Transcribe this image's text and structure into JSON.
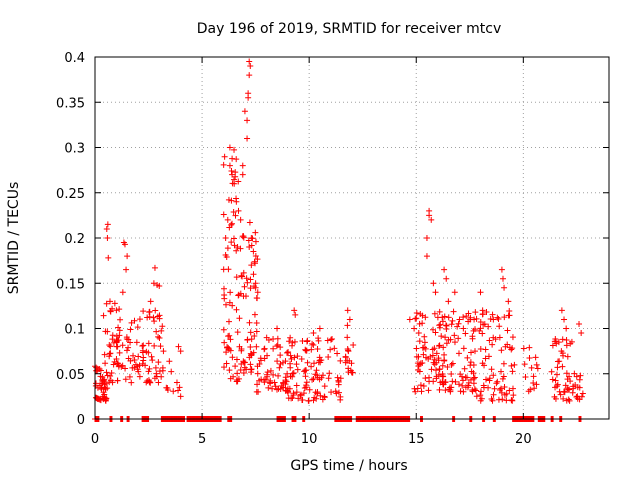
{
  "chart_data": {
    "type": "scatter",
    "title": "Day 196 of 2019, SRMTID for receiver mtcv",
    "xlabel": "GPS time / hours",
    "ylabel": "SRMTID / TECUs",
    "xlim": [
      0,
      24
    ],
    "ylim": [
      0,
      0.4
    ],
    "grid": true,
    "marker": "+",
    "series_color": "#ff0000",
    "grid_color": "#a0a0a0",
    "x_tick_values": [
      0,
      5,
      10,
      15,
      20
    ],
    "x_tick_labels": [
      "0",
      "5",
      "10",
      "15",
      "20"
    ],
    "y_tick_values": [
      0,
      0.05,
      0.1,
      0.15,
      0.2,
      0.25,
      0.3,
      0.35,
      0.4
    ],
    "y_tick_labels": [
      "0",
      "0.05",
      "0.1",
      "0.15",
      "0.2",
      "0.25",
      "0.3",
      "0.35",
      "0.4"
    ],
    "series": [
      {
        "name": "SRMTID",
        "clusters": [
          {
            "x_range": [
              0.0,
              0.6
            ],
            "y_range": [
              0.02,
              0.06
            ],
            "count": 45
          },
          {
            "x_range": [
              0.4,
              1.2
            ],
            "y_range": [
              0.04,
              0.13
            ],
            "count": 40
          },
          {
            "x_range": [
              1.0,
              2.0
            ],
            "y_range": [
              0.04,
              0.11
            ],
            "count": 35
          },
          {
            "x_range": [
              2.0,
              3.2
            ],
            "y_range": [
              0.04,
              0.12
            ],
            "count": 55
          },
          {
            "x_range": [
              3.3,
              4.0
            ],
            "y_range": [
              0.03,
              0.08
            ],
            "count": 8
          },
          {
            "x_range": [
              6.0,
              6.8
            ],
            "y_range": [
              0.04,
              0.3
            ],
            "count": 70
          },
          {
            "x_range": [
              6.8,
              7.6
            ],
            "y_range": [
              0.05,
              0.22
            ],
            "count": 60
          },
          {
            "x_range": [
              7.5,
              9.0
            ],
            "y_range": [
              0.03,
              0.09
            ],
            "count": 60
          },
          {
            "x_range": [
              9.0,
              11.5
            ],
            "y_range": [
              0.02,
              0.09
            ],
            "count": 110
          },
          {
            "x_range": [
              11.7,
              12.1
            ],
            "y_range": [
              0.05,
              0.11
            ],
            "count": 18
          },
          {
            "x_range": [
              14.8,
              16.2
            ],
            "y_range": [
              0.03,
              0.12
            ],
            "count": 70
          },
          {
            "x_range": [
              16.2,
              17.8
            ],
            "y_range": [
              0.03,
              0.12
            ],
            "count": 90
          },
          {
            "x_range": [
              17.8,
              19.6
            ],
            "y_range": [
              0.02,
              0.12
            ],
            "count": 80
          },
          {
            "x_range": [
              20.0,
              20.8
            ],
            "y_range": [
              0.03,
              0.08
            ],
            "count": 15
          },
          {
            "x_range": [
              21.3,
              22.8
            ],
            "y_range": [
              0.02,
              0.09
            ],
            "count": 60
          }
        ],
        "spikes": [
          [
            0.55,
            0.21
          ],
          [
            0.6,
            0.215
          ],
          [
            0.58,
            0.2
          ],
          [
            0.62,
            0.178
          ],
          [
            0.7,
            0.13
          ],
          [
            1.3,
            0.14
          ],
          [
            1.35,
            0.195
          ],
          [
            1.4,
            0.193
          ],
          [
            1.45,
            0.165
          ],
          [
            1.5,
            0.18
          ],
          [
            2.8,
            0.167
          ],
          [
            2.75,
            0.15
          ],
          [
            2.9,
            0.148
          ],
          [
            3.0,
            0.147
          ],
          [
            2.6,
            0.13
          ],
          [
            3.9,
            0.08
          ],
          [
            4.0,
            0.075
          ],
          [
            3.95,
            0.035
          ],
          [
            4.0,
            0.025
          ],
          [
            6.1,
            0.2
          ],
          [
            6.2,
            0.22
          ],
          [
            6.3,
            0.28
          ],
          [
            6.3,
            0.3
          ],
          [
            6.4,
            0.27
          ],
          [
            6.5,
            0.26
          ],
          [
            6.6,
            0.24
          ],
          [
            6.7,
            0.23
          ],
          [
            6.8,
            0.22
          ],
          [
            6.9,
            0.27
          ],
          [
            6.9,
            0.28
          ],
          [
            7.1,
            0.33
          ],
          [
            7.15,
            0.36
          ],
          [
            7.2,
            0.38
          ],
          [
            7.2,
            0.395
          ],
          [
            7.25,
            0.39
          ],
          [
            7.15,
            0.355
          ],
          [
            7.1,
            0.31
          ],
          [
            7.0,
            0.34
          ],
          [
            7.3,
            0.17
          ],
          [
            7.4,
            0.16
          ],
          [
            7.5,
            0.15
          ],
          [
            7.6,
            0.14
          ],
          [
            7.5,
            0.145
          ],
          [
            7.2,
            0.19
          ],
          [
            7.3,
            0.2
          ],
          [
            8.5,
            0.1
          ],
          [
            9.3,
            0.12
          ],
          [
            9.35,
            0.115
          ],
          [
            10.2,
            0.095
          ],
          [
            10.5,
            0.1
          ],
          [
            11.8,
            0.12
          ],
          [
            11.9,
            0.11
          ],
          [
            15.5,
            0.2
          ],
          [
            15.6,
            0.23
          ],
          [
            15.6,
            0.225
          ],
          [
            15.7,
            0.22
          ],
          [
            15.5,
            0.18
          ],
          [
            15.8,
            0.15
          ],
          [
            15.9,
            0.14
          ],
          [
            16.3,
            0.165
          ],
          [
            16.4,
            0.155
          ],
          [
            16.5,
            0.13
          ],
          [
            16.8,
            0.14
          ],
          [
            17.2,
            0.1
          ],
          [
            17.7,
            0.11
          ],
          [
            18.0,
            0.14
          ],
          [
            18.1,
            0.12
          ],
          [
            18.6,
            0.11
          ],
          [
            19.0,
            0.165
          ],
          [
            19.05,
            0.155
          ],
          [
            19.1,
            0.145
          ],
          [
            19.3,
            0.13
          ],
          [
            14.9,
            0.1
          ],
          [
            14.7,
            0.11
          ],
          [
            21.8,
            0.12
          ],
          [
            21.9,
            0.11
          ],
          [
            22.0,
            0.1
          ],
          [
            22.6,
            0.105
          ],
          [
            22.7,
            0.095
          ]
        ],
        "zero_baseline_ranges": [
          [
            0.0,
            0.2
          ],
          [
            0.7,
            0.8
          ],
          [
            1.2,
            1.3
          ],
          [
            1.5,
            1.6
          ],
          [
            2.2,
            2.5
          ],
          [
            3.1,
            4.2
          ],
          [
            4.3,
            5.9
          ],
          [
            6.2,
            6.4
          ],
          [
            8.5,
            8.9
          ],
          [
            9.2,
            9.4
          ],
          [
            9.7,
            9.8
          ],
          [
            11.2,
            12.0
          ],
          [
            12.2,
            14.7
          ],
          [
            15.2,
            15.3
          ],
          [
            16.7,
            16.8
          ],
          [
            17.5,
            17.6
          ],
          [
            18.1,
            18.2
          ],
          [
            18.6,
            18.7
          ],
          [
            19.5,
            20.5
          ],
          [
            20.7,
            21.0
          ],
          [
            21.3,
            21.4
          ],
          [
            21.7,
            21.8
          ],
          [
            22.6,
            22.7
          ]
        ]
      }
    ]
  }
}
